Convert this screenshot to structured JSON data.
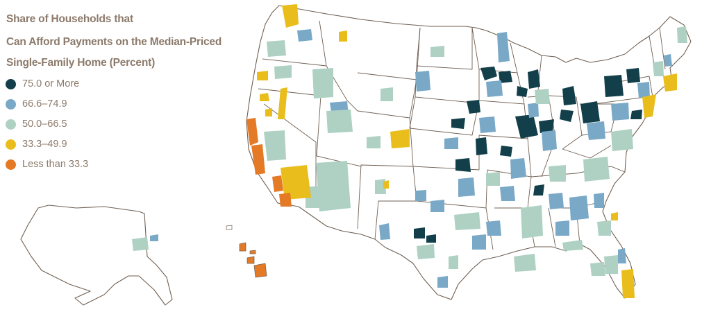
{
  "legend": {
    "title_lines": [
      "Share of Households that",
      "Can Afford Payments on the Median-Priced",
      "Single-Family Home (Percent)"
    ],
    "items": [
      {
        "label": "75.0 or More",
        "color": "#123f4a"
      },
      {
        "label": "66.6–74.9",
        "color": "#79a9c7"
      },
      {
        "label": "50.0–66.5",
        "color": "#aed1c4"
      },
      {
        "label": "33.3–49.9",
        "color": "#e9be1c"
      },
      {
        "label": "Less than 33.3",
        "color": "#e47a26"
      }
    ]
  },
  "colors": {
    "outline": "#6f5f52",
    "legend_text": "#8c7a6b"
  }
}
